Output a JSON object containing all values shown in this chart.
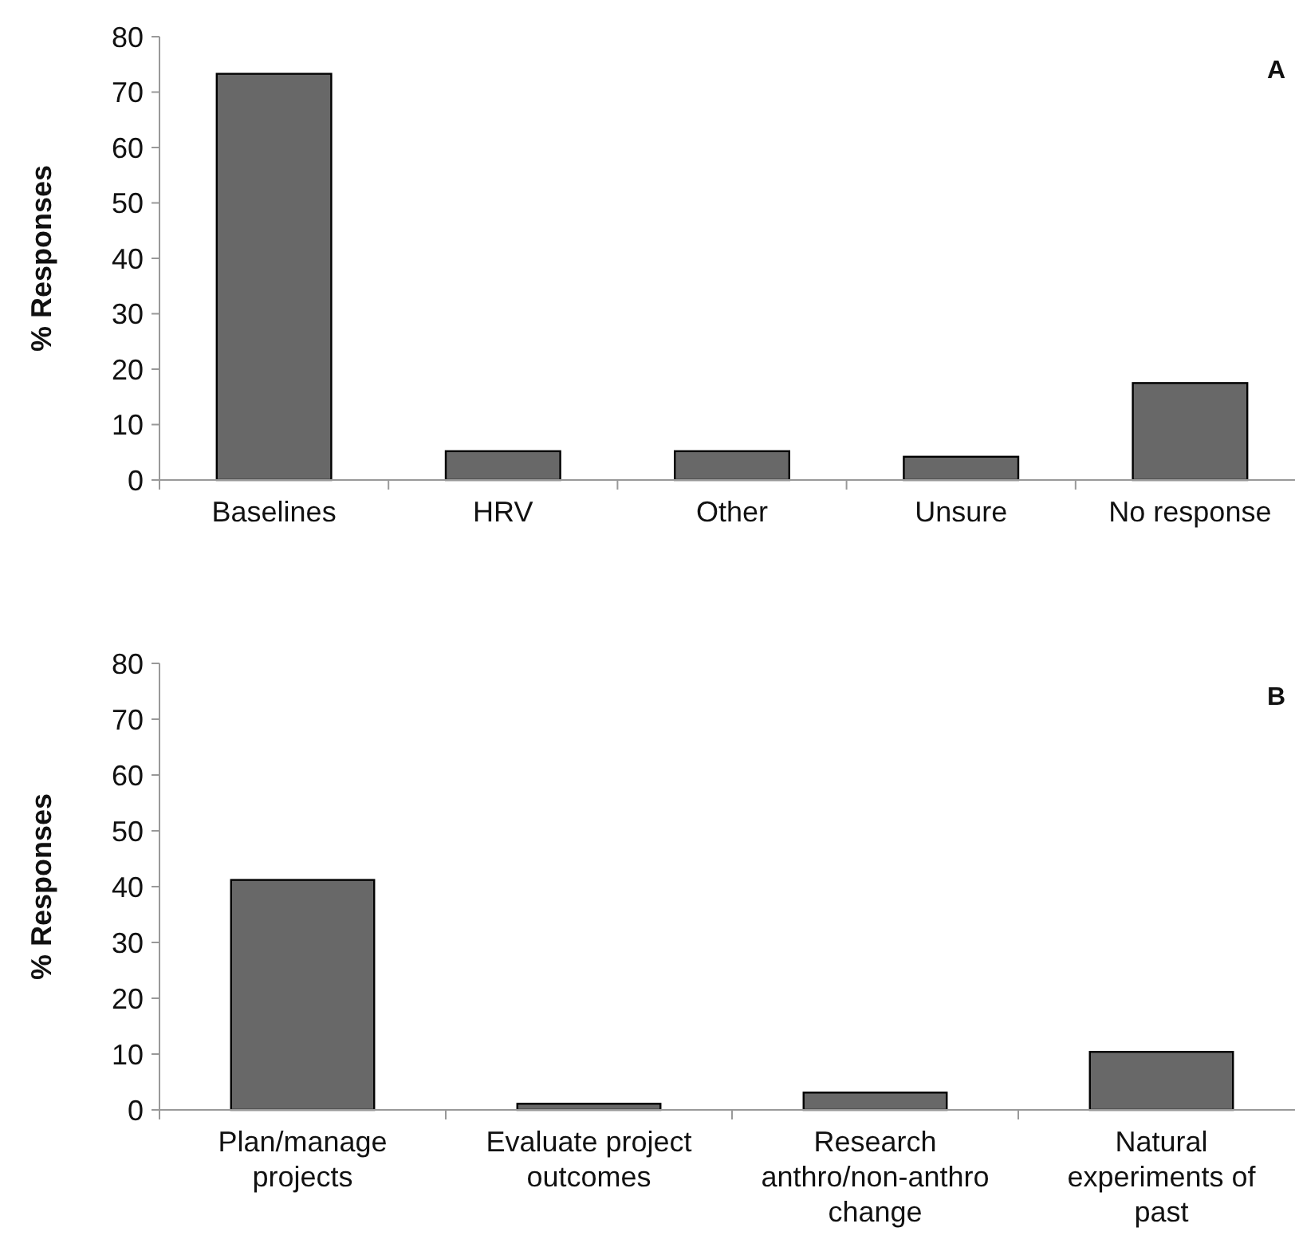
{
  "chart_data": [
    {
      "type": "bar",
      "ylabel": "% Responses",
      "categories": [
        "Baselines",
        "HRV",
        "Other",
        "Unsure",
        "No response"
      ],
      "values": [
        73.3,
        5.2,
        5.2,
        4.2,
        17.5
      ],
      "color": "#686868",
      "ylim": [
        0,
        80
      ],
      "yticks": [
        0,
        10,
        20,
        30,
        40,
        50,
        60,
        70,
        80
      ],
      "grid": false,
      "annotations": [
        "A"
      ]
    },
    {
      "type": "bar",
      "ylabel": "% Responses",
      "categories": [
        "Plan/manage projects",
        "Evaluate project outcomes",
        "Research anthro/non-anthro change",
        "Natural experiments of past"
      ],
      "values": [
        41.2,
        1.1,
        3.1,
        10.4
      ],
      "color": "#686868",
      "ylim": [
        0,
        80
      ],
      "yticks": [
        0,
        10,
        20,
        30,
        40,
        50,
        60,
        70,
        80
      ],
      "grid": false,
      "annotations": [
        "B"
      ]
    }
  ]
}
